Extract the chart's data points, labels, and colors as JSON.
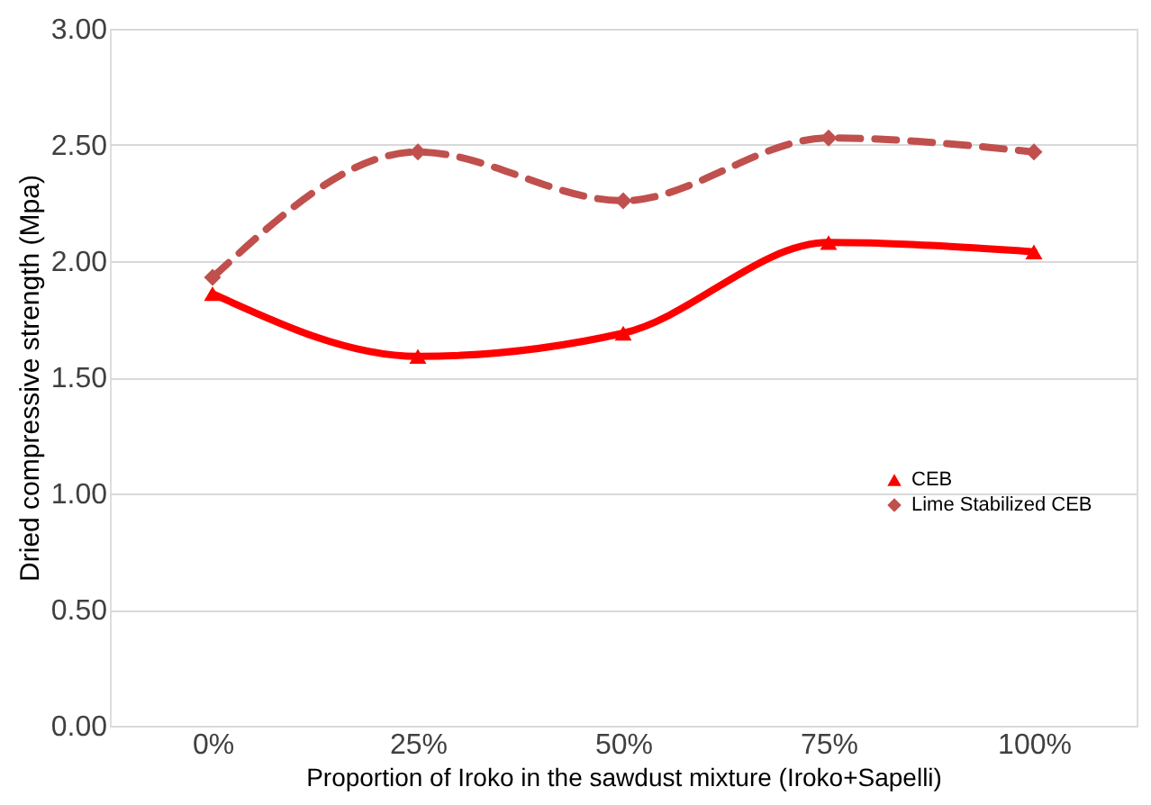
{
  "chart_data": {
    "type": "line",
    "xlabel": "Proportion of Iroko in the sawdust mixture (Iroko+Sapelli)",
    "ylabel": "Dried compressive strength (Mpa)",
    "categories": [
      "0%",
      "25%",
      "50%",
      "75%",
      "100%"
    ],
    "series": [
      {
        "name": "CEB",
        "color": "#ff0000",
        "values": [
          1.86,
          1.59,
          1.69,
          2.08,
          2.04
        ],
        "marker": "triangle",
        "line_style": "solid"
      },
      {
        "name": "Lime Stabilized CEB",
        "color": "#c0504d",
        "values": [
          1.93,
          2.47,
          2.26,
          2.53,
          2.47
        ],
        "marker": "diamond",
        "line_style": "dashed"
      }
    ],
    "ylim": [
      0,
      3
    ],
    "yticks": [
      {
        "value": 0,
        "label": "0.00"
      },
      {
        "value": 0.5,
        "label": "0.50"
      },
      {
        "value": 1,
        "label": "1.00"
      },
      {
        "value": 1.5,
        "label": "1.50"
      },
      {
        "value": 2,
        "label": "2.00"
      },
      {
        "value": 2.5,
        "label": "2.50"
      },
      {
        "value": 3,
        "label": "3.00"
      }
    ],
    "grid": "y",
    "legend": "right"
  }
}
